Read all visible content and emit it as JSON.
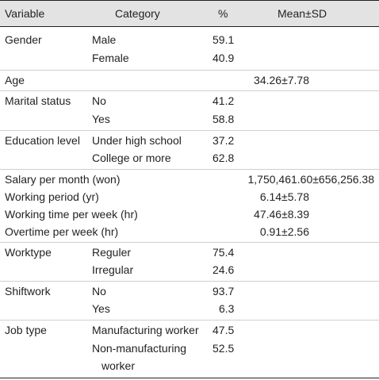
{
  "header": {
    "variable": "Variable",
    "category": "Category",
    "percent": "%",
    "mean_sd": "Mean±SD"
  },
  "rows": {
    "gender": {
      "variable": "Gender",
      "male": "Male",
      "male_pct": "59.1",
      "female": "Female",
      "female_pct": "40.9"
    },
    "age": {
      "variable": "Age",
      "mean_sd": "34.26±7.78"
    },
    "marital": {
      "variable": "Marital status",
      "no": "No",
      "no_pct": "41.2",
      "yes": "Yes",
      "yes_pct": "58.8"
    },
    "education": {
      "variable": "Education level",
      "under": "Under high school",
      "under_pct": "37.2",
      "college": "College or more",
      "college_pct": "62.8"
    },
    "salary": {
      "variable": "Salary per month (won)",
      "mean_sd": "1,750,461.60±656,256.38"
    },
    "working_period": {
      "variable": "Working period (yr)",
      "mean_sd": "6.14±5.78"
    },
    "working_time": {
      "variable": "Working time per week (hr)",
      "mean_sd": "47.46±8.39"
    },
    "overtime": {
      "variable": "Overtime per week (hr)",
      "mean_sd": "0.91±2.56"
    },
    "worktype": {
      "variable": "Worktype",
      "reguler": "Reguler",
      "reguler_pct": "75.4",
      "irregular": "Irregular",
      "irregular_pct": "24.6"
    },
    "shiftwork": {
      "variable": "Shiftwork",
      "no": "No",
      "no_pct": "93.7",
      "yes": "Yes",
      "yes_pct": "6.3"
    },
    "job_type": {
      "variable": "Job type",
      "manufacturing": "Manufacturing worker",
      "manufacturing_pct": "47.5",
      "non_manufacturing_line1": "Non-manufacturing",
      "non_manufacturing_line2": "worker",
      "non_manufacturing_pct": "52.5"
    }
  }
}
